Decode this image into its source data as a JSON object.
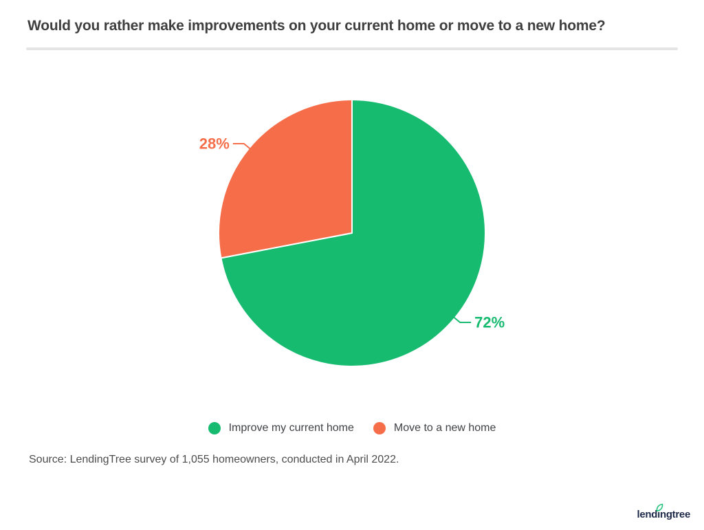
{
  "header": {
    "title": "Would you rather make improvements on your current home or move to a new home?"
  },
  "chart_data": {
    "type": "pie",
    "title": "Would you rather make improvements on your current home or move to a new home?",
    "start_angle_deg": 0,
    "direction": "clockwise",
    "slices": [
      {
        "label": "Improve my current home",
        "value": 72,
        "pct_label": "72%",
        "color": "#16bb70"
      },
      {
        "label": "Move to a new home",
        "value": 28,
        "pct_label": "28%",
        "color": "#f66d4a"
      }
    ],
    "legend_position": "bottom",
    "slice_border_color": "#ffffff"
  },
  "footer": {
    "source": "Source: LendingTree survey of 1,055 homeowners, conducted in April 2022.",
    "logo_text": "lendingtree"
  },
  "colors": {
    "background": "#ffffff",
    "title_text": "#3f3f3f",
    "divider": "#e5e5e5",
    "legend_text": "#3f4145",
    "body_text": "#4c4c4c",
    "logo_navy": "#1e2a49",
    "logo_leaf": "#21c17a"
  }
}
